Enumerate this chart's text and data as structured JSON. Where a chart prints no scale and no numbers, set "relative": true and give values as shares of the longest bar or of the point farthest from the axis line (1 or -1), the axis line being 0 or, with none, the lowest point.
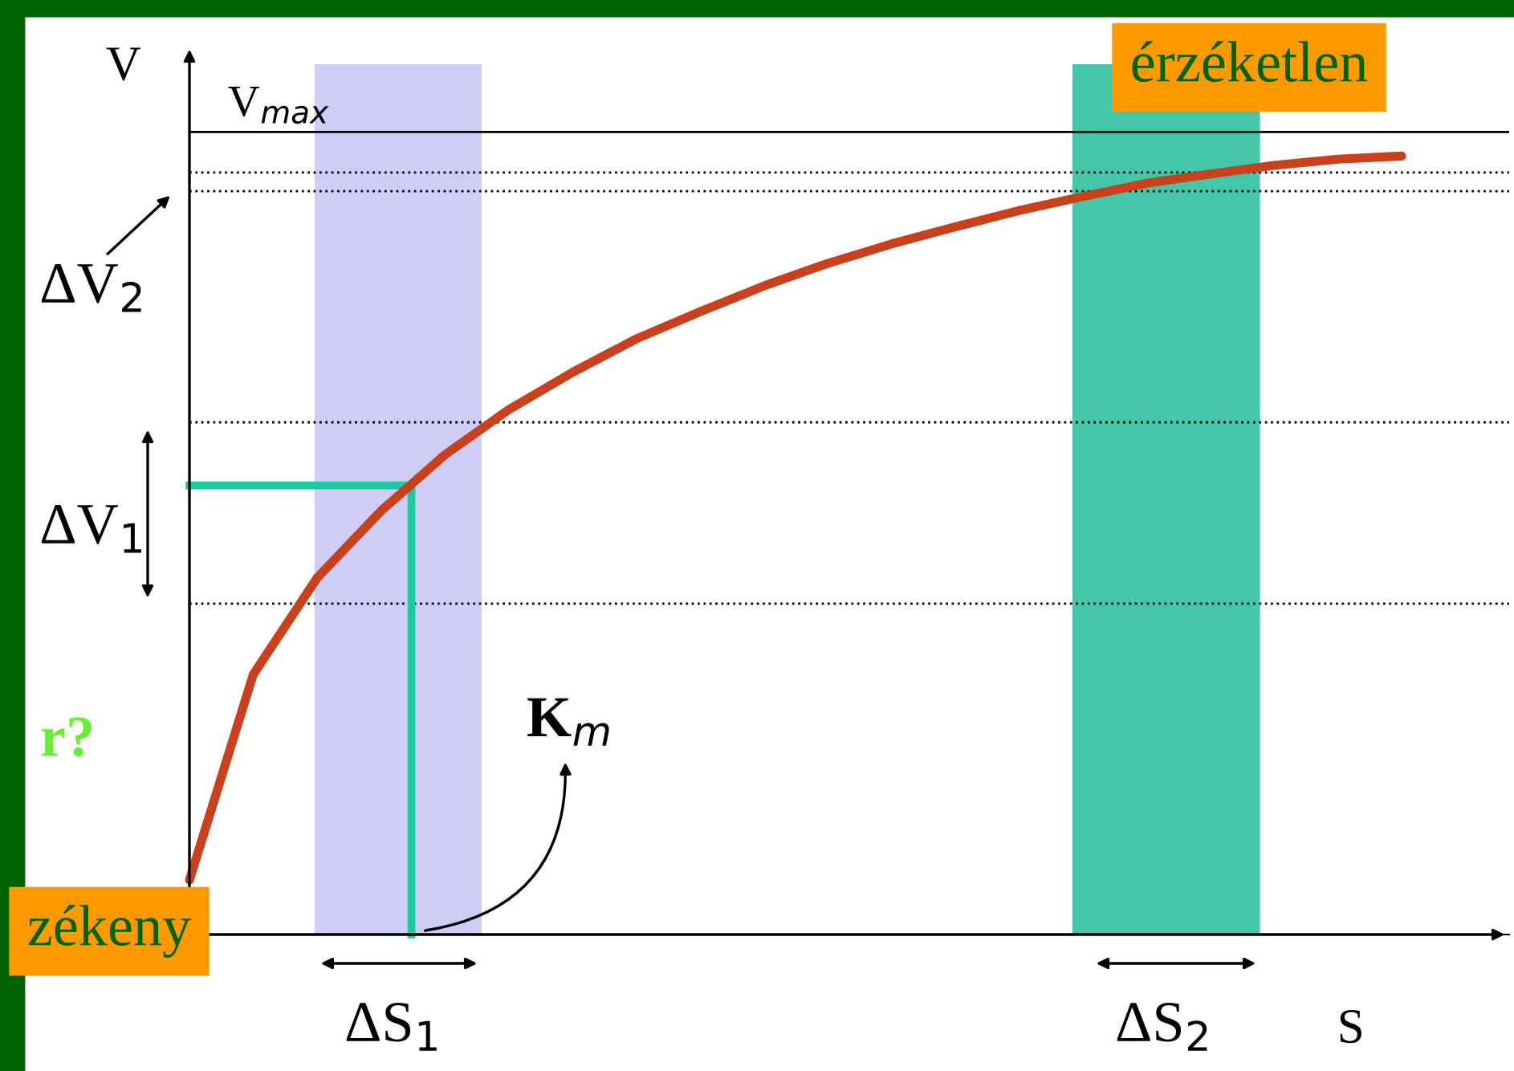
{
  "chart_data": {
    "type": "line",
    "relative": true,
    "xlabel": "S",
    "ylabel": "V",
    "categories": [
      null,
      null,
      null,
      null,
      null,
      null,
      null,
      null,
      null,
      null,
      null,
      null,
      null,
      null,
      null,
      null,
      null,
      null,
      null,
      null
    ],
    "series": [
      {
        "color": "#c8401c",
        "values": [
          0.07,
          0.334,
          0.458,
          0.544,
          0.616,
          0.674,
          0.722,
          0.765,
          0.8,
          0.833,
          0.862,
          0.887,
          0.909,
          0.93,
          0.948,
          0.965,
          0.977,
          0.988,
          0.996,
          1.0
        ]
      }
    ],
    "ref_lines": [
      {
        "axis": "y",
        "value": 1.031,
        "label": "V$_{max}$",
        "color": "#000000",
        "line_style": "solid"
      },
      {
        "axis": "y",
        "value": 0.979,
        "color": "#000000",
        "line_style": "dotted"
      },
      {
        "axis": "y",
        "value": 0.955,
        "color": "#000000",
        "line_style": "dotted"
      },
      {
        "axis": "y",
        "value": 0.658,
        "color": "#000000",
        "line_style": "dotted"
      },
      {
        "axis": "y",
        "value": 0.425,
        "color": "#000000",
        "line_style": "dotted"
      }
    ],
    "annotations": [
      "ΔV$_{2}$",
      "ΔV$_{1}$",
      "K$_{m}$",
      "ΔS$_{1}$",
      "ΔS$_{2}$",
      "érzéketlen",
      "zékeny",
      "r?"
    ],
    "grid": false
  }
}
